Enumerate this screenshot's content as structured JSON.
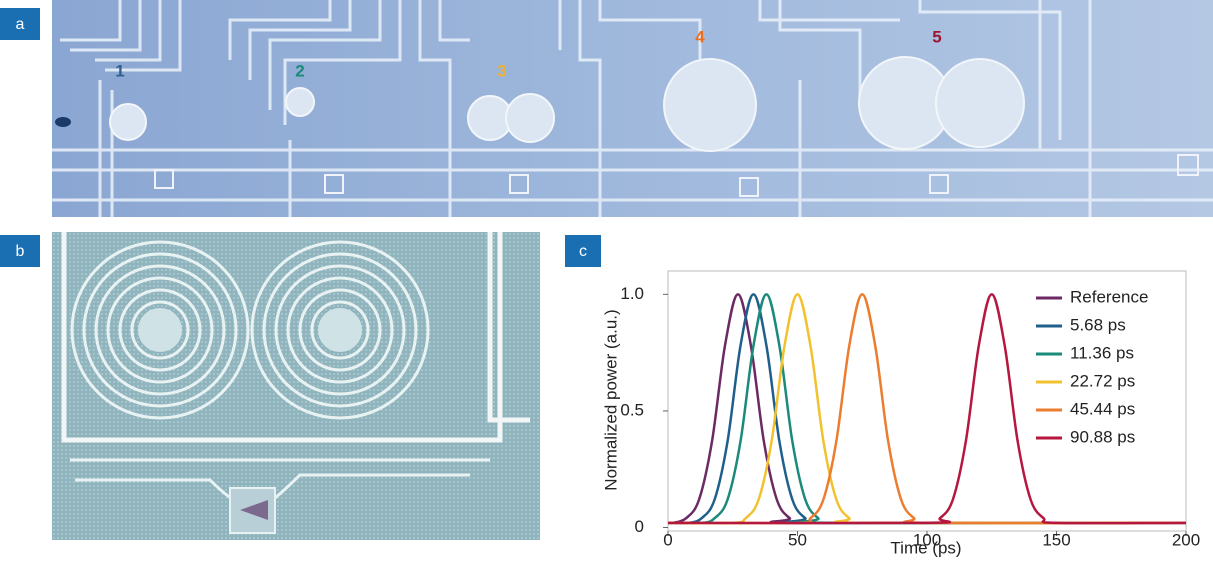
{
  "panel_labels": [
    "a",
    "b",
    "c"
  ],
  "image_a_labels": [
    {
      "text": "1",
      "color": "#2e5f8f"
    },
    {
      "text": "2",
      "color": "#1a8a7a"
    },
    {
      "text": "3",
      "color": "#f0b030"
    },
    {
      "text": "4",
      "color": "#ec6f20"
    },
    {
      "text": "5",
      "color": "#a01530"
    }
  ],
  "chart_data": {
    "type": "line",
    "xlabel": "Time (ps)",
    "ylabel": "Normalized power (a.u.)",
    "xlim": [
      0,
      200
    ],
    "ylim": [
      -0.015,
      1.1
    ],
    "xticks": [
      0,
      50,
      100,
      150,
      200
    ],
    "yticks": [
      0,
      0.5,
      {
        "value": 1,
        "label": "1.0"
      }
    ],
    "legend": "upper right",
    "series": [
      {
        "name": "Reference",
        "color": "#6b2a63",
        "x": [
          0,
          2,
          7,
          12,
          17,
          22,
          27,
          32,
          37,
          42,
          47,
          52,
          200
        ],
        "values": [
          0.02,
          0.02,
          0.04,
          0.12,
          0.37,
          0.78,
          1.0,
          0.78,
          0.37,
          0.12,
          0.04,
          0.02,
          0.02
        ]
      },
      {
        "name": "5.68 ps",
        "color": "#1f5f8b",
        "x": [
          0,
          8,
          13,
          18,
          23,
          28,
          33,
          38,
          43,
          48,
          53,
          58,
          200
        ],
        "values": [
          0.02,
          0.02,
          0.04,
          0.12,
          0.37,
          0.78,
          1.0,
          0.78,
          0.37,
          0.12,
          0.04,
          0.02,
          0.02
        ]
      },
      {
        "name": "11.36 ps",
        "color": "#1a8a7a",
        "x": [
          0,
          13,
          18,
          23,
          28,
          33,
          38,
          43,
          48,
          53,
          58,
          63,
          200
        ],
        "values": [
          0.02,
          0.02,
          0.04,
          0.12,
          0.37,
          0.78,
          1.0,
          0.78,
          0.37,
          0.12,
          0.04,
          0.02,
          0.02
        ]
      },
      {
        "name": "22.72 ps",
        "color": "#f2c12e",
        "x": [
          0,
          25,
          30,
          35,
          40,
          45,
          50,
          55,
          60,
          65,
          70,
          75,
          200
        ],
        "values": [
          0.02,
          0.02,
          0.04,
          0.12,
          0.37,
          0.78,
          1.0,
          0.78,
          0.37,
          0.12,
          0.04,
          0.02,
          0.02
        ]
      },
      {
        "name": "45.44 ps",
        "color": "#ec7d30",
        "x": [
          0,
          50,
          55,
          60,
          65,
          70,
          75,
          80,
          85,
          90,
          95,
          100,
          200
        ],
        "values": [
          0.02,
          0.02,
          0.04,
          0.12,
          0.37,
          0.78,
          1.0,
          0.78,
          0.37,
          0.12,
          0.04,
          0.02,
          0.02
        ]
      },
      {
        "name": "90.88 ps",
        "color": "#b5173f",
        "x": [
          0,
          100,
          105,
          110,
          115,
          120,
          125,
          130,
          135,
          140,
          145,
          150,
          200
        ],
        "values": [
          0.02,
          0.02,
          0.04,
          0.12,
          0.37,
          0.78,
          1.0,
          0.78,
          0.37,
          0.12,
          0.04,
          0.02,
          0.02
        ]
      }
    ]
  }
}
